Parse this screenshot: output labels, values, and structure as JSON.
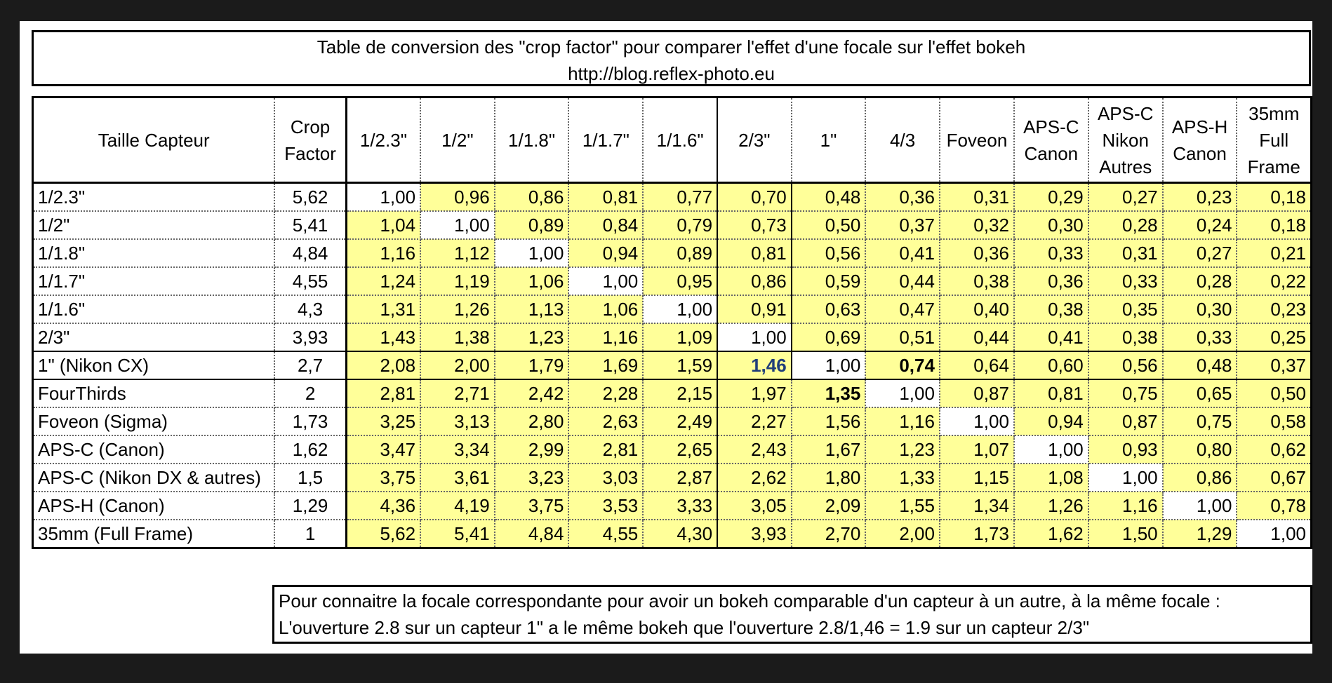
{
  "title_line1": "Table de conversion des \"crop factor\" pour comparer l'effet d'une focale sur l'effet bokeh",
  "title_line2": "http://blog.reflex-photo.eu",
  "headers": {
    "sensor": "Taille Capteur",
    "crop_line1": "Crop",
    "crop_line2": "Factor",
    "columns": [
      [
        "1/2.3\""
      ],
      [
        "1/2\""
      ],
      [
        "1/1.8\""
      ],
      [
        "1/1.7\""
      ],
      [
        "1/1.6\""
      ],
      [
        "2/3\""
      ],
      [
        "1\""
      ],
      [
        "4/3"
      ],
      [
        "Foveon"
      ],
      [
        "APS-C",
        "Canon"
      ],
      [
        "APS-C",
        "Nikon",
        "Autres"
      ],
      [
        "APS-H",
        "Canon"
      ],
      [
        "35mm",
        "Full",
        "Frame"
      ]
    ]
  },
  "rows": [
    {
      "name": "1/2.3\"",
      "crop": "5,62",
      "values": [
        "1,00",
        "0,96",
        "0,86",
        "0,81",
        "0,77",
        "0,70",
        "0,48",
        "0,36",
        "0,31",
        "0,29",
        "0,27",
        "0,23",
        "0,18"
      ]
    },
    {
      "name": "1/2\"",
      "crop": "5,41",
      "values": [
        "1,04",
        "1,00",
        "0,89",
        "0,84",
        "0,79",
        "0,73",
        "0,50",
        "0,37",
        "0,32",
        "0,30",
        "0,28",
        "0,24",
        "0,18"
      ]
    },
    {
      "name": "1/1.8\"",
      "crop": "4,84",
      "values": [
        "1,16",
        "1,12",
        "1,00",
        "0,94",
        "0,89",
        "0,81",
        "0,56",
        "0,41",
        "0,36",
        "0,33",
        "0,31",
        "0,27",
        "0,21"
      ]
    },
    {
      "name": "1/1.7\"",
      "crop": "4,55",
      "values": [
        "1,24",
        "1,19",
        "1,06",
        "1,00",
        "0,95",
        "0,86",
        "0,59",
        "0,44",
        "0,38",
        "0,36",
        "0,33",
        "0,28",
        "0,22"
      ]
    },
    {
      "name": "1/1.6\"",
      "crop": "4,3",
      "values": [
        "1,31",
        "1,26",
        "1,13",
        "1,06",
        "1,00",
        "0,91",
        "0,63",
        "0,47",
        "0,40",
        "0,38",
        "0,35",
        "0,30",
        "0,23"
      ]
    },
    {
      "name": "2/3\"",
      "crop": "3,93",
      "values": [
        "1,43",
        "1,38",
        "1,23",
        "1,16",
        "1,09",
        "1,00",
        "0,69",
        "0,51",
        "0,44",
        "0,41",
        "0,38",
        "0,33",
        "0,25"
      ]
    },
    {
      "name": "1\" (Nikon CX)",
      "crop": "2,7",
      "values": [
        "2,08",
        "2,00",
        "1,79",
        "1,69",
        "1,59",
        "1,46",
        "1,00",
        "0,74",
        "0,64",
        "0,60",
        "0,56",
        "0,48",
        "0,37"
      ]
    },
    {
      "name": "FourThirds",
      "crop": "2",
      "values": [
        "2,81",
        "2,71",
        "2,42",
        "2,28",
        "2,15",
        "1,97",
        "1,35",
        "1,00",
        "0,87",
        "0,81",
        "0,75",
        "0,65",
        "0,50"
      ]
    },
    {
      "name": "Foveon (Sigma)",
      "crop": "1,73",
      "values": [
        "3,25",
        "3,13",
        "2,80",
        "2,63",
        "2,49",
        "2,27",
        "1,56",
        "1,16",
        "1,00",
        "0,94",
        "0,87",
        "0,75",
        "0,58"
      ]
    },
    {
      "name": "APS-C (Canon)",
      "crop": "1,62",
      "values": [
        "3,47",
        "3,34",
        "2,99",
        "2,81",
        "2,65",
        "2,43",
        "1,67",
        "1,23",
        "1,07",
        "1,00",
        "0,93",
        "0,80",
        "0,62"
      ]
    },
    {
      "name": "APS-C (Nikon DX & autres)",
      "crop": "1,5",
      "values": [
        "3,75",
        "3,61",
        "3,23",
        "3,03",
        "2,87",
        "2,62",
        "1,80",
        "1,33",
        "1,15",
        "1,08",
        "1,00",
        "0,86",
        "0,67"
      ]
    },
    {
      "name": "APS-H (Canon)",
      "crop": "1,29",
      "values": [
        "4,36",
        "4,19",
        "3,75",
        "3,53",
        "3,33",
        "3,05",
        "2,09",
        "1,55",
        "1,34",
        "1,26",
        "1,16",
        "1,00",
        "0,78"
      ]
    },
    {
      "name": "35mm (Full Frame)",
      "crop": "1",
      "values": [
        "5,62",
        "5,41",
        "4,84",
        "4,55",
        "4,30",
        "3,93",
        "2,70",
        "2,00",
        "1,73",
        "1,62",
        "1,50",
        "1,29",
        "1,00"
      ]
    }
  ],
  "highlights": {
    "bold": [
      [
        6,
        7
      ],
      [
        7,
        6
      ]
    ],
    "blue": [
      [
        6,
        5
      ]
    ]
  },
  "colors": {
    "cell_fill": "#ffff99",
    "diagonal_fill": "#ffffff",
    "highlight_text": "#1f3d7a"
  },
  "note_line1": "Pour connaitre la focale correspondante pour avoir un bokeh comparable d'un capteur à un autre, à la même focale :",
  "note_line2": "L'ouverture 2.8 sur un capteur 1\" a le même bokeh que l'ouverture 2.8/1,46 = 1.9 sur un capteur 2/3\""
}
